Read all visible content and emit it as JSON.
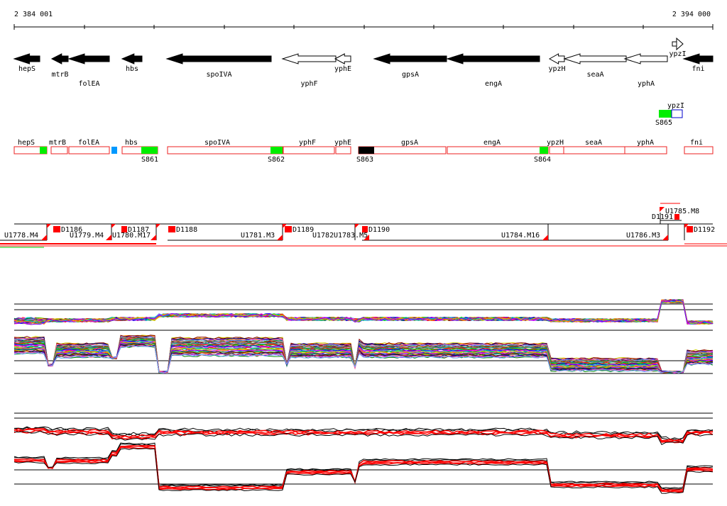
{
  "coords": {
    "start": "2 384 001",
    "end": "2 394 000"
  },
  "genes": [
    {
      "name": "hepS",
      "strand": "-",
      "filled": true,
      "label_row": 0
    },
    {
      "name": "mtrB",
      "strand": "-",
      "filled": true,
      "label_row": 1
    },
    {
      "name": "folEA",
      "strand": "-",
      "filled": true,
      "label_row": 2
    },
    {
      "name": "hbs",
      "strand": "-",
      "filled": true,
      "label_row": 0
    },
    {
      "name": "spoIVA",
      "strand": "-",
      "filled": true,
      "label_row": 1
    },
    {
      "name": "yphF",
      "strand": "-",
      "filled": false,
      "label_row": 2
    },
    {
      "name": "yphE",
      "strand": "-",
      "filled": false,
      "label_row": 0
    },
    {
      "name": "gpsA",
      "strand": "-",
      "filled": true,
      "label_row": 1
    },
    {
      "name": "engA",
      "strand": "-",
      "filled": true,
      "label_row": 2
    },
    {
      "name": "ypzH",
      "strand": "-",
      "filled": false,
      "label_row": 0
    },
    {
      "name": "seaA",
      "strand": "-",
      "filled": false,
      "label_row": 1
    },
    {
      "name": "yphA",
      "strand": "-",
      "filled": false,
      "label_row": 2
    },
    {
      "name": "ypzI",
      "strand": "+",
      "filled": false,
      "label_row": 0
    },
    {
      "name": "fni",
      "strand": "-",
      "filled": true,
      "label_row": 0
    }
  ],
  "annotations": {
    "genes": [
      "hepS",
      "mtrB",
      "folEA",
      "hbs",
      "spoIVA",
      "yphF",
      "yphE",
      "gpsA",
      "engA",
      "ypzH",
      "seaA",
      "yphA",
      "fni"
    ],
    "upper_gene": "ypzI",
    "sigma_labels": [
      "S861",
      "S862",
      "S863",
      "S864",
      "S865"
    ]
  },
  "transcripts": {
    "upper": [
      "U1785.M8",
      "D1191"
    ],
    "main": [
      "U1778.M4",
      "D1186",
      "U1779.M4",
      "U1780.M17",
      "D1187",
      "D1188",
      "U1781.M3",
      "D1189",
      "U1782",
      "U1783.M5",
      "D1190",
      "U1784.M16",
      "U1786.M3",
      "D1192"
    ]
  },
  "colors": {
    "gene_fill": "#000000",
    "box_border": "#ee2222",
    "sigma_green": "#00ee00",
    "sigma_blue": "#0099ff",
    "marker_red": "#ff0000",
    "ypzI_box": "#0000cc"
  }
}
